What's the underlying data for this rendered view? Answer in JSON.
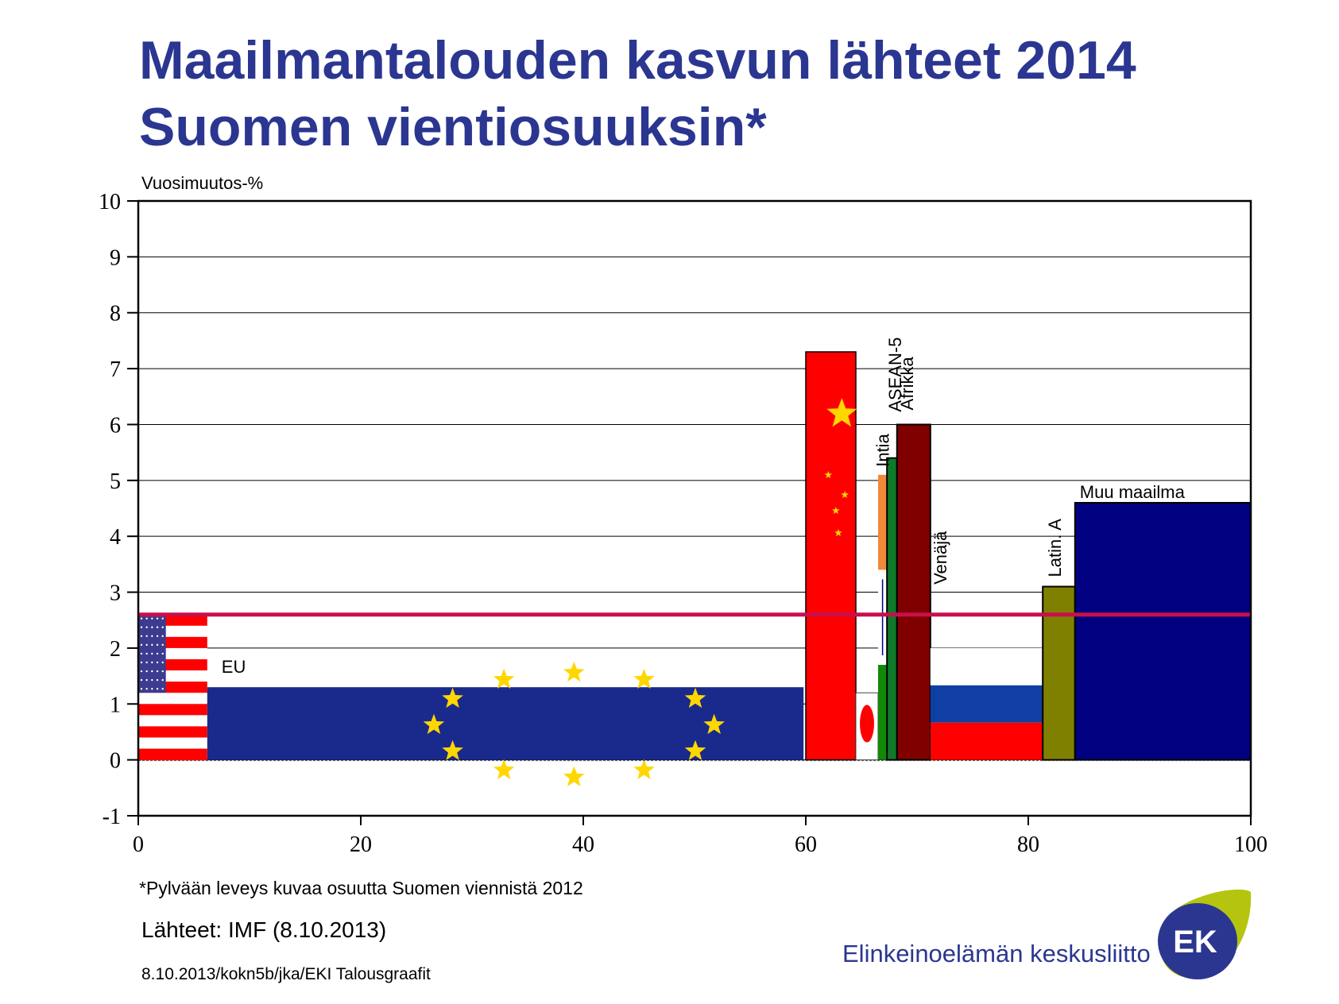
{
  "title": {
    "line1": "Maailmantalouden kasvun lähteet 2014",
    "line2": "Suomen vientiosuuksin*"
  },
  "chart_data": {
    "type": "bar",
    "variable_width": true,
    "ylabel": "Vuosimuutos-%",
    "xlim": [
      0,
      100
    ],
    "ylim": [
      -1,
      10
    ],
    "xticks": [
      0,
      20,
      40,
      60,
      80,
      100
    ],
    "yticks": [
      -1,
      0,
      1,
      2,
      3,
      4,
      5,
      6,
      7,
      8,
      9,
      10
    ],
    "grid": true,
    "bars": [
      {
        "name": "USA",
        "label": "",
        "x0": 0,
        "x1": 6.2,
        "value": 2.6,
        "style": "usa"
      },
      {
        "name": "EU",
        "label": "EU",
        "x0": 6.2,
        "x1": 59.8,
        "value": 1.3,
        "style": "eu"
      },
      {
        "name": "Kiina",
        "label": "",
        "x0": 60,
        "x1": 64.5,
        "value": 7.3,
        "style": "china"
      },
      {
        "name": "Japani",
        "label": "",
        "x0": 64.5,
        "x1": 66.5,
        "value": 1.2,
        "style": "japan"
      },
      {
        "name": "Intia",
        "label": "Intia",
        "x0": 66.5,
        "x1": 67.3,
        "value": 5.1,
        "style": "india"
      },
      {
        "name": "ASEAN-5",
        "label": "ASEAN-5",
        "x0": 67.3,
        "x1": 68.2,
        "value": 5.4,
        "style": "asean"
      },
      {
        "name": "Afrikka",
        "label": "Afrikka",
        "x0": 68.2,
        "x1": 71.2,
        "value": 6.0,
        "style": "africa"
      },
      {
        "name": "Venäjä",
        "label": "Venäjä",
        "x0": 71.2,
        "x1": 81.3,
        "value": 2.0,
        "style": "russia"
      },
      {
        "name": "Latin. A",
        "label": "Latin. A",
        "x0": 81.3,
        "x1": 84.2,
        "value": 3.1,
        "style": "latam"
      },
      {
        "name": "Muu maailma",
        "label": "Muu maailma",
        "x0": 84.2,
        "x1": 100,
        "value": 4.6,
        "style": "rest"
      }
    ],
    "reference_line": {
      "value": 2.6,
      "color": "#c8104c"
    },
    "colors": {
      "red": "#ff0000",
      "blue_dark": "#0a137a",
      "eu_blue": "#1a2a8c",
      "star_yellow": "#ffd700",
      "india_orange": "#f0893a",
      "india_green": "#138808",
      "asean_green": "#0f7a2a",
      "africa": "#800000",
      "russia_blue": "#0f3fa3",
      "latam": "#808000",
      "rest": "#000080"
    }
  },
  "footer": {
    "note": "*Pylvään leveys kuvaa osuutta Suomen viennistä 2012",
    "source": "Lähteet: IMF (8.10.2013)",
    "ref": "8.10.2013/kokn5b/jka/EKI Talousgraafit",
    "org": "Elinkeinoelämän keskusliitto",
    "logo_text": "EK"
  }
}
